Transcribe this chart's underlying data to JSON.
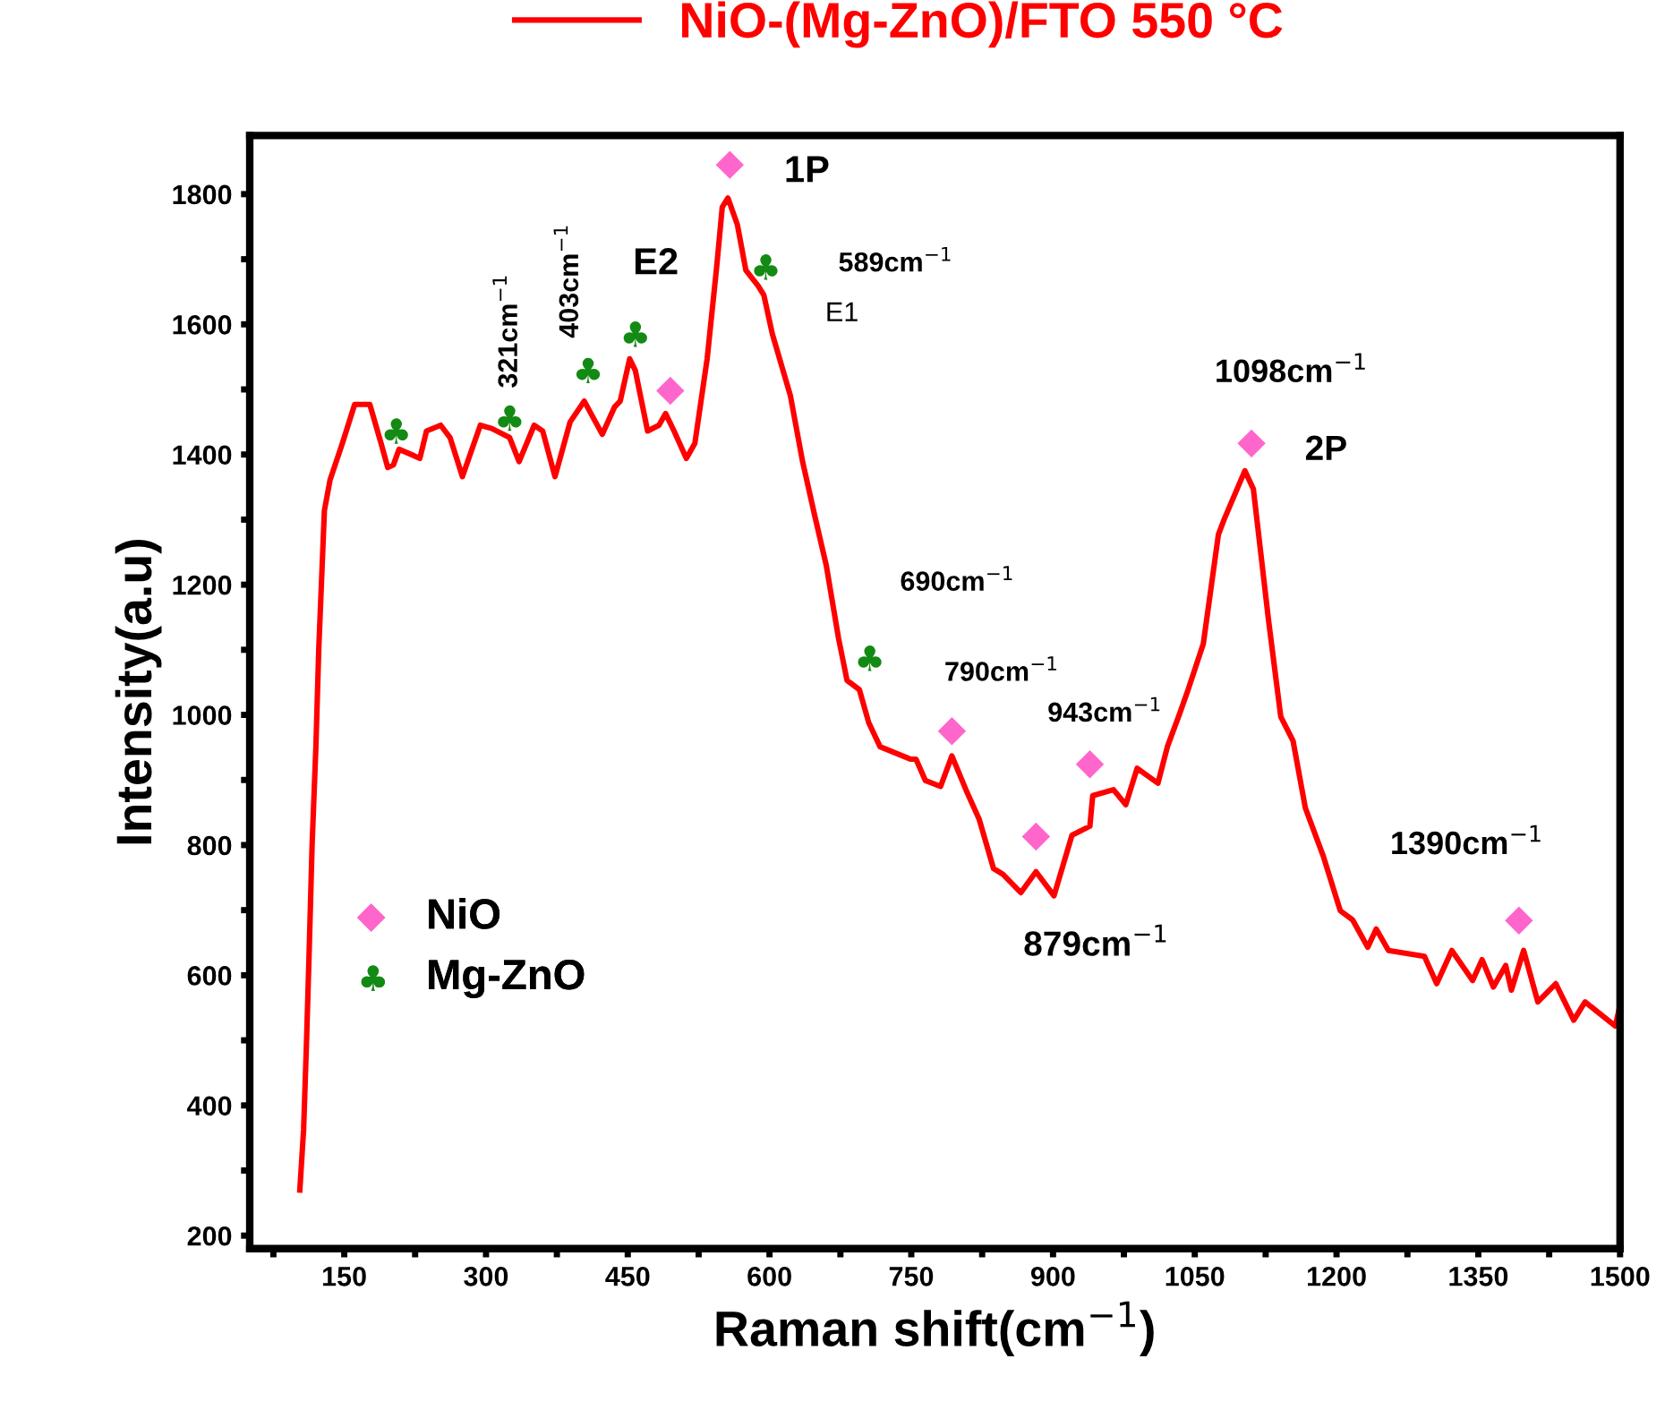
{
  "chart_data": {
    "type": "line",
    "xlabel": "Raman shift(cm$^{−1}$)",
    "ylabel": "Intensity(a.u)",
    "xlim": [
      50,
      1500
    ],
    "ylim": [
      180,
      1890
    ],
    "xticks": [
      {
        "value": 75,
        "label": null
      },
      150,
      {
        "value": 225,
        "label": null
      },
      300,
      {
        "value": 375,
        "label": null
      },
      450,
      {
        "value": 525,
        "label": null
      },
      600,
      {
        "value": 675,
        "label": null
      },
      750,
      {
        "value": 825,
        "label": null
      },
      900,
      {
        "value": 975,
        "label": null
      },
      1050,
      {
        "value": 1125,
        "label": null
      },
      1200,
      {
        "value": 1275,
        "label": null
      },
      1350,
      {
        "value": 1425,
        "label": null
      },
      1500
    ],
    "yticks": [
      200,
      {
        "value": 300,
        "label": null
      },
      400,
      {
        "value": 500,
        "label": null
      },
      600,
      {
        "value": 700,
        "label": null
      },
      800,
      {
        "value": 900,
        "label": null
      },
      1000,
      {
        "value": 1100,
        "label": null
      },
      1200,
      {
        "value": 1300,
        "label": null
      },
      1400,
      {
        "value": 1500,
        "label": null
      },
      1600,
      {
        "value": 1700,
        "label": null
      },
      1800
    ],
    "grid": false,
    "legend": [
      "top",
      "center left"
    ],
    "series": [
      {
        "name": "NiO-(Mg-ZnO)/FTO 550 °C",
        "color": "#ff0000",
        "marker": "none",
        "x": [
          103,
          107,
          110,
          113,
          116,
          120,
          123,
          129,
          135,
          148,
          161,
          177,
          189,
          196,
          202,
          208,
          224,
          230,
          237,
          252,
          262,
          275,
          294,
          306,
          325,
          335,
          351,
          360,
          373,
          389,
          404,
          411,
          423,
          436,
          442,
          452,
          458,
          471,
          483,
          490,
          499,
          512,
          521,
          534,
          544,
          550,
          556,
          566,
          575,
          588,
          594,
          603,
          622,
          635,
          648,
          660,
          673,
          682,
          695,
          705,
          717,
          749,
          755,
          765,
          781,
          793,
          809,
          822,
          837,
          847,
          866,
          882,
          901,
          920,
          939,
          942,
          964,
          977,
          989,
          1011,
          1021,
          1034,
          1043,
          1059,
          1075,
          1081,
          1103,
          1112,
          1128,
          1141,
          1154,
          1167,
          1186,
          1204,
          1217,
          1233,
          1242,
          1255,
          1293,
          1306,
          1322,
          1344,
          1354,
          1366,
          1379,
          1385,
          1398,
          1413,
          1432,
          1451,
          1463,
          1495,
          1500
        ],
        "values": [
          270,
          363,
          494,
          643,
          801,
          951,
          1100,
          1314,
          1361,
          1417,
          1477,
          1477,
          1417,
          1380,
          1384,
          1408,
          1398,
          1394,
          1436,
          1445,
          1426,
          1366,
          1445,
          1440,
          1426,
          1389,
          1445,
          1436,
          1366,
          1450,
          1482,
          1463,
          1431,
          1473,
          1482,
          1547,
          1529,
          1436,
          1445,
          1463,
          1436,
          1394,
          1417,
          1547,
          1687,
          1780,
          1794,
          1753,
          1683,
          1659,
          1645,
          1585,
          1491,
          1389,
          1305,
          1230,
          1118,
          1053,
          1039,
          988,
          951,
          932,
          932,
          899,
          890,
          937,
          881,
          839,
          764,
          755,
          727,
          759,
          722,
          815,
          829,
          876,
          885,
          862,
          918,
          895,
          951,
          1002,
          1039,
          1109,
          1277,
          1300,
          1375,
          1347,
          1146,
          997,
          960,
          857,
          783,
          699,
          685,
          643,
          671,
          638,
          629,
          587,
          638,
          592,
          624,
          582,
          615,
          577,
          638,
          559,
          587,
          531,
          559,
          522,
          554
        ]
      },
      {
        "name": "NiO",
        "type": "scatter",
        "color": "#ff66cc",
        "marker": "diamond",
        "x": [
          558,
          495,
          793,
          882,
          939,
          1110,
          1393
        ],
        "values": [
          1845,
          1498,
          975,
          813,
          924,
          1417,
          684
        ]
      },
      {
        "name": "Mg-ZnO",
        "type": "scatter",
        "color": "#138a13",
        "x": [
          203,
          323,
          406,
          456,
          594,
          704
        ],
        "values": [
          1436,
          1456,
          1529,
          1585,
          1688,
          1087
        ]
      }
    ],
    "annotations": [
      {
        "text": "321cm$^{−1}$",
        "x": 323,
        "y": 1456
      },
      {
        "text": "403cm$^{−1}$",
        "x": 406,
        "y": 1529
      },
      {
        "text": "E2",
        "x": 456,
        "y": 1585
      },
      {
        "text": "1P",
        "x": 558,
        "y": 1845
      },
      {
        "text": "589cm$^{−1}$",
        "x": 594,
        "y": 1688
      },
      {
        "text": "E1",
        "x": 603,
        "y": 1585
      },
      {
        "text": "690cm$^{−1}$",
        "x": 704,
        "y": 1087
      },
      {
        "text": "790cm$^{−1}$",
        "x": 793,
        "y": 975
      },
      {
        "text": "943cm$^{−1}$",
        "x": 939,
        "y": 924
      },
      {
        "text": "879cm$^{−1}$",
        "x": 901,
        "y": 722
      },
      {
        "text": "1098cm$^{−1}$",
        "x": 1110,
        "y": 1417
      },
      {
        "text": "2P",
        "x": 1110,
        "y": 1417
      },
      {
        "text": "1390cm$^{−1}$",
        "x": 1393,
        "y": 684
      }
    ]
  }
}
